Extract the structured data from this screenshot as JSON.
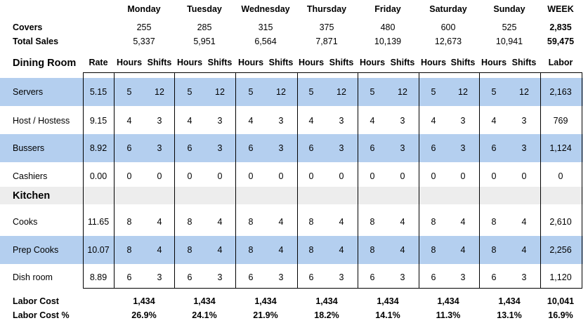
{
  "days": [
    "Monday",
    "Tuesday",
    "Wednesday",
    "Thursday",
    "Friday",
    "Saturday",
    "Sunday"
  ],
  "week_label": "WEEK",
  "covers": {
    "label": "Covers",
    "values": [
      "255",
      "285",
      "315",
      "375",
      "480",
      "600",
      "525"
    ],
    "week": "2,835"
  },
  "total_sales": {
    "label": "Total Sales",
    "values": [
      "5,337",
      "5,951",
      "6,564",
      "7,871",
      "10,139",
      "12,673",
      "10,941"
    ],
    "week": "59,475"
  },
  "dining_room_header": {
    "label": "Dining Room",
    "rate": "Rate",
    "hours": "Hours",
    "shifts": "Shifts",
    "labor": "Labor"
  },
  "kitchen_header": "Kitchen",
  "roles": [
    {
      "name": "Servers",
      "rate": "5.15",
      "hours": [
        "5",
        "5",
        "5",
        "5",
        "5",
        "5",
        "5"
      ],
      "shifts": [
        "12",
        "12",
        "12",
        "12",
        "12",
        "12",
        "12"
      ],
      "labor": "2,163",
      "highlight": true
    },
    {
      "name": "Host / Hostess",
      "rate": "9.15",
      "hours": [
        "4",
        "4",
        "4",
        "4",
        "4",
        "4",
        "4"
      ],
      "shifts": [
        "3",
        "3",
        "3",
        "3",
        "3",
        "3",
        "3"
      ],
      "labor": "769",
      "highlight": false
    },
    {
      "name": "Bussers",
      "rate": "8.92",
      "hours": [
        "6",
        "6",
        "6",
        "6",
        "6",
        "6",
        "6"
      ],
      "shifts": [
        "3",
        "3",
        "3",
        "3",
        "3",
        "3",
        "3"
      ],
      "labor": "1,124",
      "highlight": true
    },
    {
      "name": "Cashiers",
      "rate": "0.00",
      "hours": [
        "0",
        "0",
        "0",
        "0",
        "0",
        "0",
        "0"
      ],
      "shifts": [
        "0",
        "0",
        "0",
        "0",
        "0",
        "0",
        "0"
      ],
      "labor": "0",
      "highlight": false
    },
    {
      "name": "Cooks",
      "rate": "11.65",
      "hours": [
        "8",
        "8",
        "8",
        "8",
        "8",
        "8",
        "8"
      ],
      "shifts": [
        "4",
        "4",
        "4",
        "4",
        "4",
        "4",
        "4"
      ],
      "labor": "2,610",
      "highlight": false
    },
    {
      "name": "Prep Cooks",
      "rate": "10.07",
      "hours": [
        "8",
        "8",
        "8",
        "8",
        "8",
        "8",
        "8"
      ],
      "shifts": [
        "4",
        "4",
        "4",
        "4",
        "4",
        "4",
        "4"
      ],
      "labor": "2,256",
      "highlight": true
    },
    {
      "name": "Dish room",
      "rate": "8.89",
      "hours": [
        "6",
        "6",
        "6",
        "6",
        "6",
        "6",
        "6"
      ],
      "shifts": [
        "3",
        "3",
        "3",
        "3",
        "3",
        "3",
        "3"
      ],
      "labor": "1,120",
      "highlight": false
    }
  ],
  "labor_cost": {
    "label": "Labor Cost",
    "values": [
      "1,434",
      "1,434",
      "1,434",
      "1,434",
      "1,434",
      "1,434",
      "1,434"
    ],
    "week": "10,041"
  },
  "labor_cost_pct": {
    "label": "Labor Cost %",
    "values": [
      "26.9%",
      "24.1%",
      "21.9%",
      "18.2%",
      "14.1%",
      "11.3%",
      "13.1%"
    ],
    "week": "16.9%"
  },
  "colors": {
    "highlight": "#B4CFEF",
    "section": "#EDEDED",
    "grid": "#000000"
  }
}
